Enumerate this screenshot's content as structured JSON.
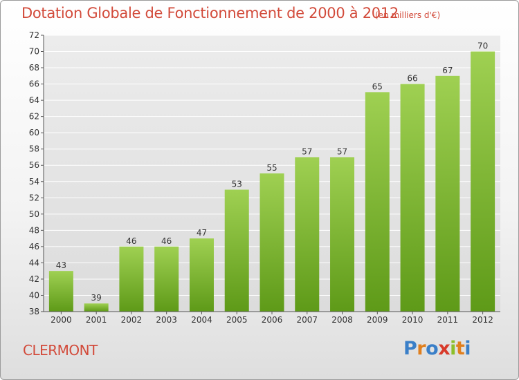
{
  "header": {
    "title": "Dotation Globale de Fonctionnement de 2000 à 2012",
    "subtitle": "(en milliers d'€)"
  },
  "footer": {
    "commune": "CLERMONT",
    "logo_text": "Proxiti",
    "logo_letters": [
      {
        "ch": "P",
        "color": "#3a7fc8"
      },
      {
        "ch": "r",
        "color": "#e07f1e"
      },
      {
        "ch": "o",
        "color": "#3a7fc8"
      },
      {
        "ch": "x",
        "color": "#d83a2a"
      },
      {
        "ch": "i",
        "color": "#8cbf2a"
      },
      {
        "ch": "t",
        "color": "#e07f1e"
      },
      {
        "ch": "i",
        "color": "#3a7fc8"
      }
    ]
  },
  "colors": {
    "title": "#d24a3a",
    "bar_light": "#9fd052",
    "bar_dark": "#5e9a18",
    "grid": "#ffffff",
    "axis_text": "#333333"
  },
  "chart_data": {
    "type": "bar",
    "categories": [
      "2000",
      "2001",
      "2002",
      "2003",
      "2004",
      "2005",
      "2006",
      "2007",
      "2008",
      "2009",
      "2010",
      "2011",
      "2012"
    ],
    "values": [
      43,
      39,
      46,
      46,
      47,
      53,
      55,
      57,
      57,
      65,
      66,
      67,
      70
    ],
    "title": "Dotation Globale de Fonctionnement de 2000 à 2012",
    "subtitle": "(en milliers d'€)",
    "xlabel": "",
    "ylabel": "",
    "ylim": [
      38,
      72
    ],
    "yticks": [
      38,
      40,
      42,
      44,
      46,
      48,
      50,
      52,
      54,
      56,
      58,
      60,
      62,
      64,
      66,
      68,
      70,
      72
    ],
    "grid": true,
    "data_labels": true
  }
}
